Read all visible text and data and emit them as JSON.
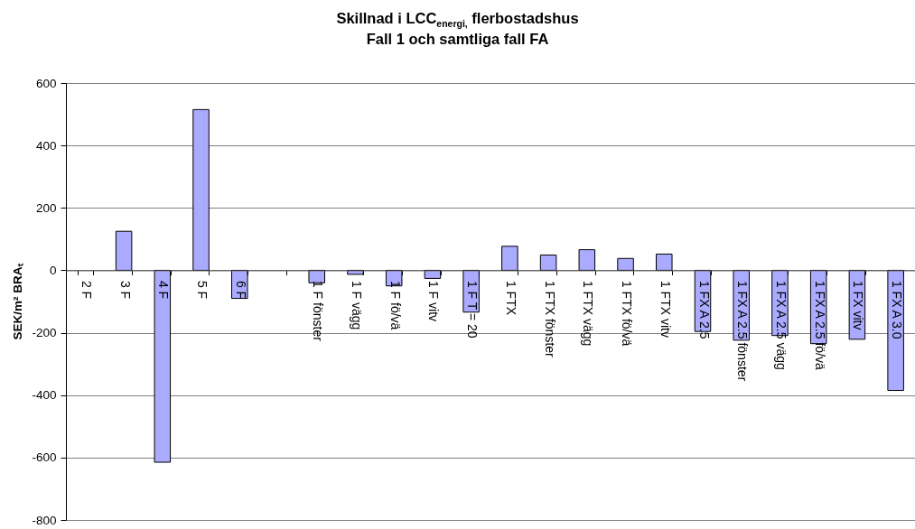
{
  "chart_data": {
    "type": "bar",
    "title": "Skillnad i LCC$_{energi,}$ flerbostadshus",
    "subtitle": "Fall 1 och samtliga fall FA",
    "ylabel": "SEK/m² BRAₜ",
    "categories": [
      "2 F",
      "3 F",
      "4 F",
      "5 F",
      "6 F",
      null,
      "1 F fönster",
      "1 F vägg",
      "1 F fö/vä",
      "1 F vitv",
      "1 F T = 20",
      "1 FTX",
      "1 FTX fönster",
      "1 FTX vägg",
      "1 FTX fö/vä",
      "1 FTX vitv",
      "1 FX A 2.5",
      "1 FX A 2.5 fönster",
      "1 FX A 2.5 vägg",
      "1 FX A 2.5 fö/vä",
      "1 FX vitv",
      "1 FX A 3.0"
    ],
    "values": [
      null,
      125,
      -615,
      515,
      -90,
      null,
      -40,
      -13,
      -50,
      -26,
      -134,
      77,
      49,
      66,
      38,
      52,
      -196,
      -224,
      -209,
      -235,
      -221,
      -385
    ],
    "color": "#aaaaff",
    "ylim": [
      -800,
      600
    ],
    "yticks": [
      -800,
      -600,
      -400,
      -200,
      0,
      200,
      400,
      600
    ],
    "grid": "y"
  }
}
